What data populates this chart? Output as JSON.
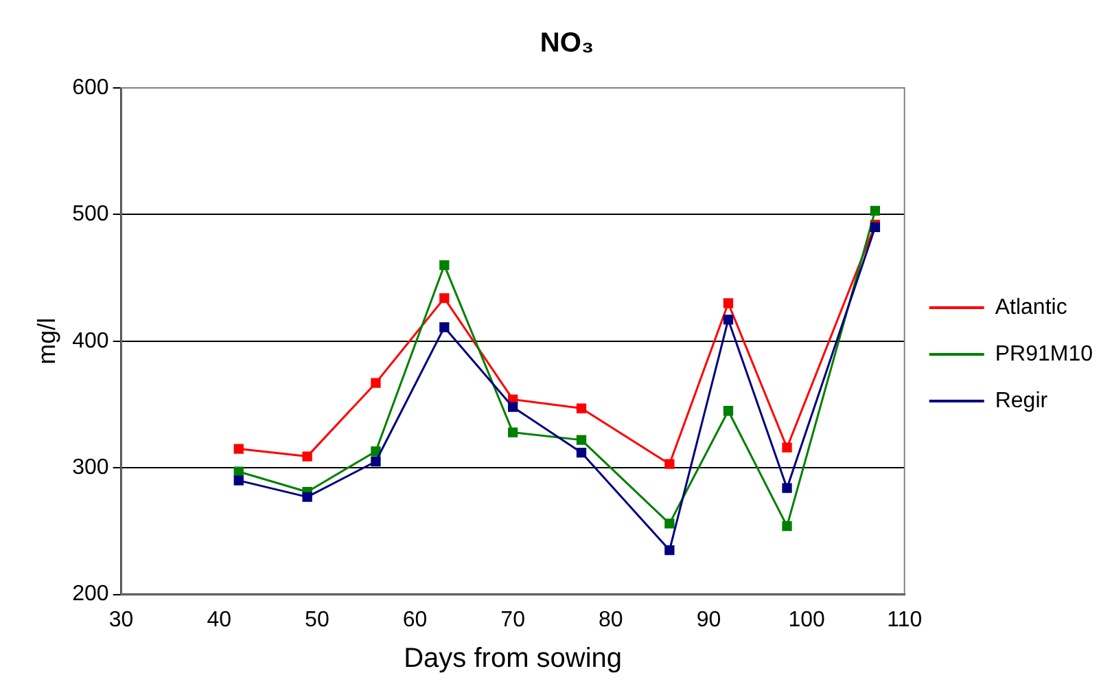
{
  "chart_data": {
    "type": "line",
    "title": "NO₃",
    "xlabel": "Days from sowing",
    "ylabel": "mg/l",
    "x": [
      42,
      49,
      56,
      63,
      70,
      77,
      86,
      92,
      98,
      107
    ],
    "series": [
      {
        "name": "Atlantic",
        "color": "#ff0000",
        "values": [
          315,
          309,
          367,
          434,
          354,
          347,
          303,
          430,
          316,
          492
        ]
      },
      {
        "name": "PR91M10",
        "color": "#008000",
        "values": [
          297,
          281,
          313,
          460,
          328,
          322,
          256,
          345,
          254,
          503
        ]
      },
      {
        "name": "Regir",
        "color": "#000080",
        "values": [
          290,
          277,
          305,
          411,
          348,
          312,
          235,
          417,
          284,
          490
        ]
      }
    ],
    "xlim": [
      30,
      110
    ],
    "xticks": [
      30,
      40,
      50,
      60,
      70,
      80,
      90,
      100,
      110
    ],
    "ylim": [
      200,
      600
    ],
    "yticks": [
      200,
      300,
      400,
      500,
      600
    ],
    "grid": "y",
    "legend": "right",
    "marker": "square",
    "line_style": "solid"
  }
}
